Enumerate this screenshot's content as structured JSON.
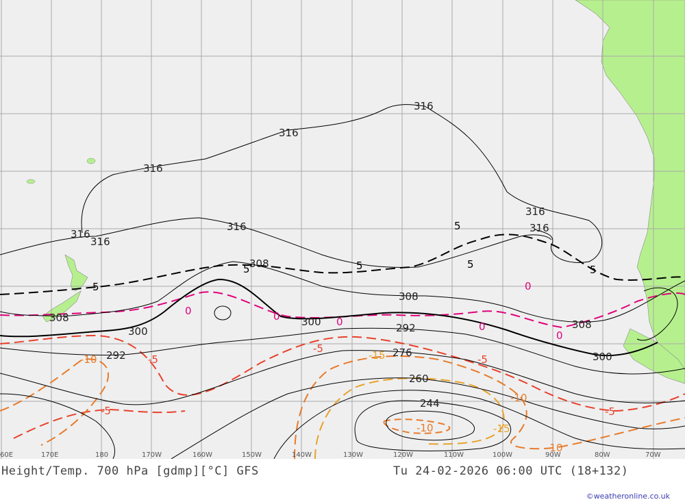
{
  "map": {
    "title": "Height/Temp. 700 hPa [gdmp][°C] GFS",
    "valid": "Tu 24-02-2026 06:00 UTC (18+132)",
    "credit": "©weatheronline.co.uk",
    "colors": {
      "ocean": "#efefef",
      "land": "#b6f08e",
      "grid": "#a9a9a9",
      "height": "#000000",
      "temp0": "#e0007a",
      "temp_minus5": "#e8402a",
      "temp_minus10": "#e87a2a",
      "temp_minus15": "#e8a22a"
    },
    "longitudes": [
      "60E",
      "170E",
      "180",
      "170W",
      "160W",
      "150W",
      "140W",
      "130W",
      "120W",
      "110W",
      "100W",
      "90W",
      "80W",
      "70W"
    ],
    "height_labels": [
      "316",
      "316",
      "316",
      "316",
      "316",
      "316",
      "316",
      "316",
      "308",
      "308",
      "308",
      "308",
      "300",
      "300",
      "300",
      "292",
      "292",
      "276",
      "260",
      "244"
    ],
    "temp_labels": [
      "5",
      "5",
      "5",
      "5",
      "5",
      "5",
      "0",
      "0",
      "0",
      "0",
      "0",
      "0",
      "-5",
      "-5",
      "-5",
      "-5",
      "-5",
      "-10",
      "-10",
      "-10",
      "-10",
      "-15",
      "-15"
    ]
  }
}
